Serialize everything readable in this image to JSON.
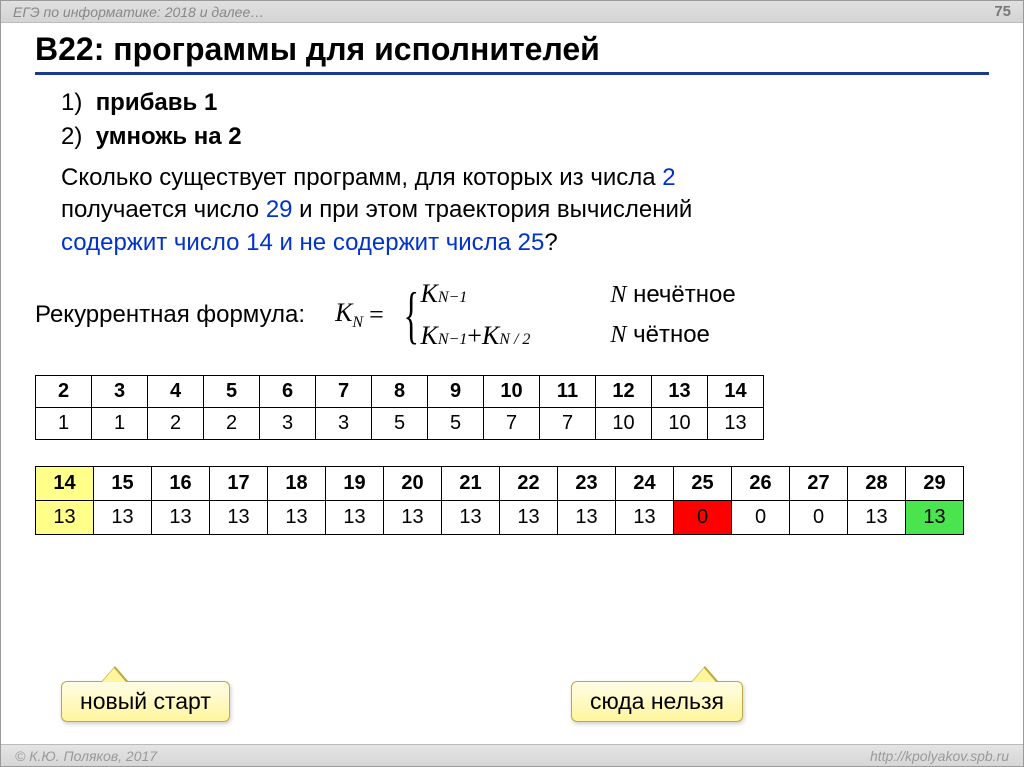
{
  "topbar": {
    "left": "ЕГЭ по информатике: 2018 и далее…",
    "page": "75"
  },
  "title": "B22: программы для исполнителей",
  "list": {
    "item1_num": "1)",
    "item1": "прибавь 1",
    "item2_num": "2)",
    "item2": "умножь на 2"
  },
  "question": {
    "l1a": "Сколько существует программ, для которых из числа ",
    "l1num": "2",
    "l2a": "получается число ",
    "l2num": "29",
    "l2b": " и при этом траектория вычислений",
    "l3a": "содержит число 14 и не содержит числа 25",
    "l3b": "?"
  },
  "formula": {
    "label": "Рекуррентная формула:",
    "lhs": "K",
    "lhs_sub": "N",
    "eq": " = ",
    "case1_a": "K",
    "case1_sub": "N−1",
    "case2_a": "K",
    "case2_sub1": "N−1",
    "plus": " + ",
    "case2_b": "K",
    "case2_sub2": "N / 2",
    "cond1_a": "N",
    "cond1_b": " нечётное",
    "cond2_a": "N",
    "cond2_b": " чётное"
  },
  "table1": {
    "header": [
      "2",
      "3",
      "4",
      "5",
      "6",
      "7",
      "8",
      "9",
      "10",
      "11",
      "12",
      "13",
      "14"
    ],
    "values": [
      "1",
      "1",
      "2",
      "2",
      "3",
      "3",
      "5",
      "5",
      "7",
      "7",
      "10",
      "10",
      "13"
    ]
  },
  "table2": {
    "header": [
      "14",
      "15",
      "16",
      "17",
      "18",
      "19",
      "20",
      "21",
      "22",
      "23",
      "24",
      "25",
      "26",
      "27",
      "28",
      "29"
    ],
    "values": [
      "13",
      "13",
      "13",
      "13",
      "13",
      "13",
      "13",
      "13",
      "13",
      "13",
      "13",
      "0",
      "0",
      "0",
      "13",
      "13"
    ],
    "header_highlight": {
      "0": "highlight-yellow"
    },
    "value_highlight": {
      "0": "highlight-yellow",
      "11": "highlight-red",
      "15": "highlight-green"
    }
  },
  "callout1": "новый старт",
  "callout2": "сюда нельзя",
  "footer": {
    "left": "© К.Ю. Поляков, 2017",
    "right": "http://kpolyakov.spb.ru"
  }
}
